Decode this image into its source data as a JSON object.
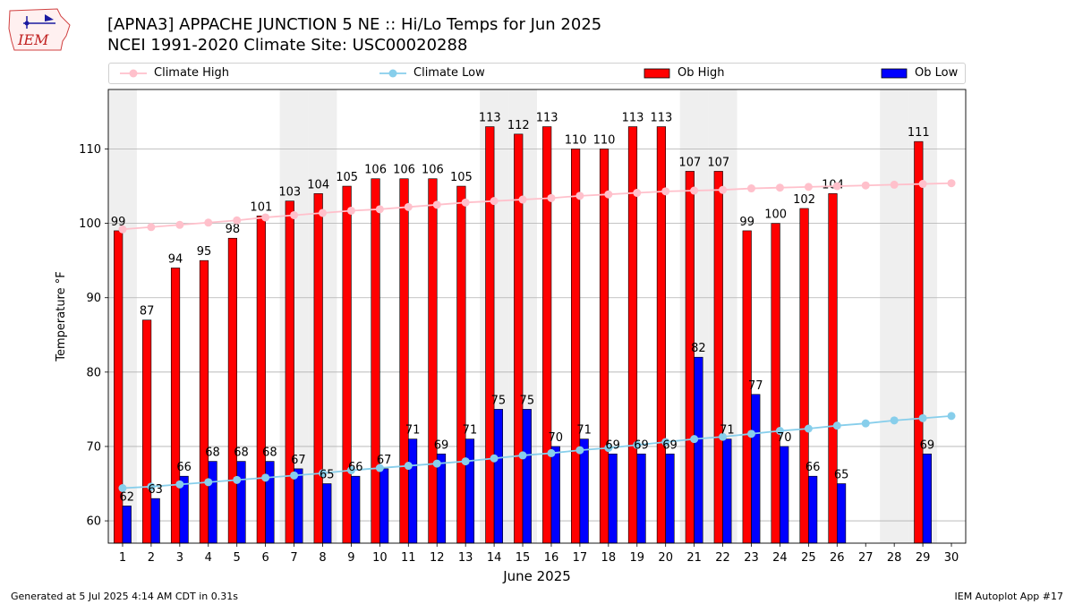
{
  "title_line1": "[APNA3] APPACHE JUNCTION 5 NE :: Hi/Lo Temps for Jun 2025",
  "title_line2": "NCEI 1991-2020 Climate Site: USC00020288",
  "logo_text": "IEM",
  "footer_left": "Generated at 5 Jul 2025 4:14 AM CDT in 0.31s",
  "footer_right": "IEM Autoplot App #17",
  "legend": {
    "climate_high": "Climate High",
    "climate_low": "Climate Low",
    "ob_high": "Ob High",
    "ob_low": "Ob Low"
  },
  "colors": {
    "climate_high": "#ffc0cb",
    "climate_low": "#87ceeb",
    "ob_high": "#ff0000",
    "ob_low": "#0000ff",
    "weekend_shade": "#efefef",
    "grid": "#b0b0b0"
  },
  "chart_data": {
    "type": "bar",
    "xlabel": "June 2025",
    "ylabel": "Temperature °F",
    "ylim": [
      57,
      118
    ],
    "yticks": [
      60,
      70,
      80,
      90,
      100,
      110
    ],
    "grid": "horizontal",
    "legend_position": "top",
    "x": [
      1,
      2,
      3,
      4,
      5,
      6,
      7,
      8,
      9,
      10,
      11,
      12,
      13,
      14,
      15,
      16,
      17,
      18,
      19,
      20,
      21,
      22,
      23,
      24,
      25,
      26,
      27,
      28,
      29,
      30
    ],
    "weekend_days": [
      1,
      7,
      8,
      14,
      15,
      21,
      22,
      28,
      29
    ],
    "series": [
      {
        "name": "Ob High",
        "kind": "bar",
        "values": [
          99,
          87,
          94,
          95,
          98,
          101,
          103,
          104,
          105,
          106,
          106,
          106,
          105,
          113,
          112,
          113,
          110,
          110,
          113,
          113,
          107,
          107,
          99,
          100,
          102,
          104,
          null,
          null,
          111,
          null
        ]
      },
      {
        "name": "Ob Low",
        "kind": "bar",
        "values": [
          62,
          63,
          66,
          68,
          68,
          68,
          67,
          65,
          66,
          67,
          71,
          69,
          71,
          75,
          75,
          70,
          71,
          69,
          69,
          69,
          82,
          71,
          77,
          70,
          66,
          65,
          null,
          null,
          69,
          null
        ]
      },
      {
        "name": "Climate High",
        "kind": "line",
        "values": [
          99.2,
          99.5,
          99.8,
          100.1,
          100.4,
          100.8,
          101.1,
          101.4,
          101.7,
          101.9,
          102.2,
          102.5,
          102.8,
          103.0,
          103.2,
          103.4,
          103.7,
          103.9,
          104.1,
          104.3,
          104.4,
          104.5,
          104.7,
          104.8,
          104.9,
          105.0,
          105.1,
          105.2,
          105.3,
          105.4
        ]
      },
      {
        "name": "Climate Low",
        "kind": "line",
        "values": [
          64.4,
          64.6,
          64.9,
          65.2,
          65.5,
          65.8,
          66.1,
          66.4,
          66.8,
          67.1,
          67.4,
          67.7,
          68.0,
          68.4,
          68.8,
          69.1,
          69.5,
          69.8,
          70.2,
          70.6,
          71.0,
          71.3,
          71.7,
          72.1,
          72.4,
          72.8,
          73.1,
          73.5,
          73.8,
          74.1
        ]
      }
    ]
  }
}
